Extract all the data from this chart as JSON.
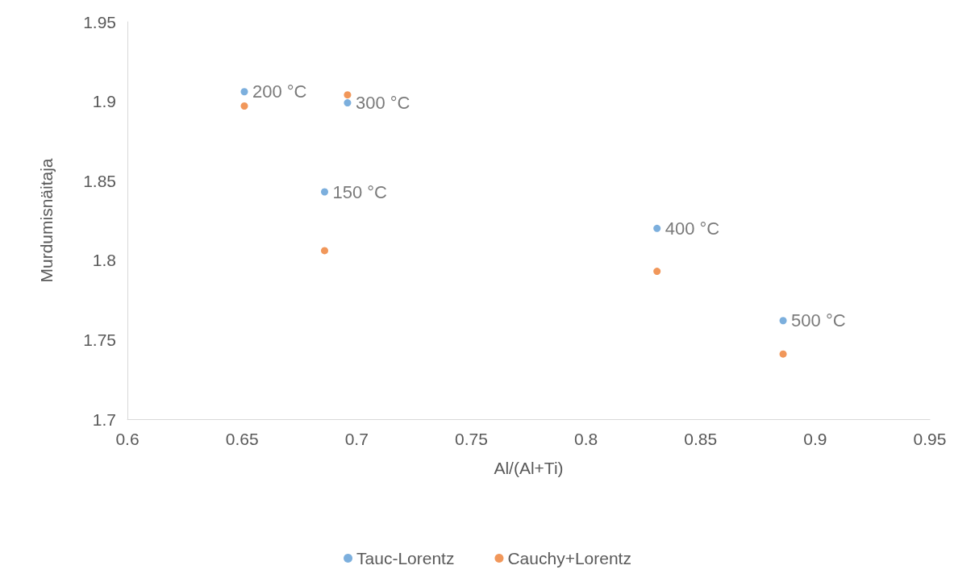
{
  "chart_data": {
    "type": "scatter",
    "xlabel": "Al/(Al+Ti)",
    "ylabel": "Murdumisnäitaja",
    "xlim": [
      0.6,
      0.95
    ],
    "xticks": [
      0.6,
      0.65,
      0.7,
      0.75,
      0.8,
      0.85,
      0.9,
      0.95
    ],
    "ylim": [
      1.7,
      1.95
    ],
    "yticks": [
      1.7,
      1.75,
      1.8,
      1.85,
      1.9,
      1.95
    ],
    "grid": false,
    "legend": "bottom",
    "marker": "circle",
    "series": [
      {
        "name": "Tauc-Lorentz",
        "color": "#5b9bd5",
        "x": [
          0.651,
          0.696,
          0.686,
          0.831,
          0.886
        ],
        "values": [
          1.906,
          1.899,
          1.843,
          1.82,
          1.762
        ]
      },
      {
        "name": "Cauchy+Lorentz",
        "color": "#ed7d31",
        "x": [
          0.651,
          0.696,
          0.686,
          0.831,
          0.886
        ],
        "values": [
          1.897,
          1.904,
          1.806,
          1.793,
          1.741
        ]
      }
    ],
    "annotations": [
      {
        "text": "200 °C",
        "x": 0.651,
        "y": 1.906
      },
      {
        "text": "300 °C",
        "x": 0.696,
        "y": 1.899
      },
      {
        "text": "150 °C",
        "x": 0.686,
        "y": 1.843
      },
      {
        "text": "400 °C",
        "x": 0.831,
        "y": 1.82
      },
      {
        "text": "500 °C",
        "x": 0.886,
        "y": 1.762
      }
    ]
  }
}
